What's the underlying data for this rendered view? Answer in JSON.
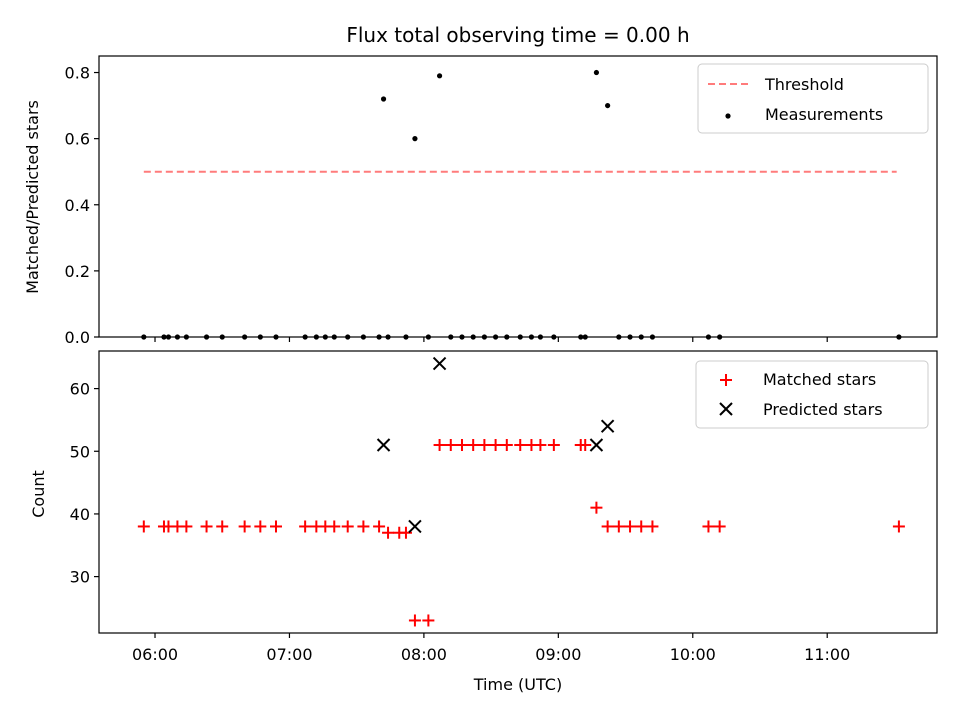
{
  "chart_data": [
    {
      "type": "scatter",
      "title": "Flux total observing time = 0.00 h",
      "xlabel": "",
      "ylabel": "Matched/Predicted stars",
      "ylim": [
        0,
        0.85
      ],
      "yticks": [
        "0.0",
        "0.2",
        "0.4",
        "0.6",
        "0.8"
      ],
      "ytick_values": [
        0,
        0.2,
        0.4,
        0.6,
        0.8
      ],
      "legend_position": "top-right",
      "threshold": {
        "name": "Threshold",
        "value": 0.5,
        "x_start": "05:55",
        "x_end": "11:31",
        "color": "#ff7b7b",
        "style": "dashed"
      },
      "series": [
        {
          "name": "Measurements",
          "color": "#000000",
          "marker": "dot",
          "points": [
            [
              "05:55",
              0
            ],
            [
              "06:04",
              0
            ],
            [
              "06:06",
              0
            ],
            [
              "06:10",
              0
            ],
            [
              "06:14",
              0
            ],
            [
              "06:23",
              0
            ],
            [
              "06:30",
              0
            ],
            [
              "06:40",
              0
            ],
            [
              "06:47",
              0
            ],
            [
              "06:54",
              0
            ],
            [
              "07:07",
              0
            ],
            [
              "07:12",
              0
            ],
            [
              "07:16",
              0
            ],
            [
              "07:20",
              0
            ],
            [
              "07:26",
              0
            ],
            [
              "07:33",
              0
            ],
            [
              "07:40",
              0
            ],
            [
              "07:44",
              0
            ],
            [
              "07:52",
              0
            ],
            [
              "07:42",
              0.72
            ],
            [
              "07:56",
              0.6
            ],
            [
              "08:07",
              0.79
            ],
            [
              "08:02",
              0
            ],
            [
              "08:12",
              0
            ],
            [
              "08:17",
              0
            ],
            [
              "08:22",
              0
            ],
            [
              "08:27",
              0
            ],
            [
              "08:32",
              0
            ],
            [
              "08:37",
              0
            ],
            [
              "08:43",
              0
            ],
            [
              "08:48",
              0
            ],
            [
              "08:52",
              0
            ],
            [
              "08:58",
              0
            ],
            [
              "09:10",
              0
            ],
            [
              "09:12",
              0
            ],
            [
              "09:17",
              0.8
            ],
            [
              "09:22",
              0.7
            ],
            [
              "09:27",
              0
            ],
            [
              "09:32",
              0
            ],
            [
              "09:37",
              0
            ],
            [
              "09:42",
              0
            ],
            [
              "10:07",
              0
            ],
            [
              "10:12",
              0
            ],
            [
              "11:32",
              0
            ]
          ]
        }
      ]
    },
    {
      "type": "scatter",
      "title": "",
      "xlabel": "Time (UTC)",
      "ylabel": "Count",
      "ylim": [
        21,
        66
      ],
      "yticks": [
        "30",
        "40",
        "50",
        "60"
      ],
      "ytick_values": [
        30,
        40,
        50,
        60
      ],
      "xlim": [
        "05:35",
        "11:49"
      ],
      "xticks": [
        "06:00",
        "07:00",
        "08:00",
        "09:00",
        "10:00",
        "11:00"
      ],
      "legend_position": "top-right",
      "series": [
        {
          "name": "Matched stars",
          "color": "#ff0000",
          "marker": "plus",
          "points": [
            [
              "05:55",
              38
            ],
            [
              "06:04",
              38
            ],
            [
              "06:06",
              38
            ],
            [
              "06:10",
              38
            ],
            [
              "06:14",
              38
            ],
            [
              "06:23",
              38
            ],
            [
              "06:30",
              38
            ],
            [
              "06:40",
              38
            ],
            [
              "06:47",
              38
            ],
            [
              "06:54",
              38
            ],
            [
              "07:07",
              38
            ],
            [
              "07:12",
              38
            ],
            [
              "07:16",
              38
            ],
            [
              "07:20",
              38
            ],
            [
              "07:26",
              38
            ],
            [
              "07:33",
              38
            ],
            [
              "07:40",
              38
            ],
            [
              "07:44",
              37
            ],
            [
              "07:49",
              37
            ],
            [
              "07:52",
              37
            ],
            [
              "07:56",
              23
            ],
            [
              "08:02",
              23
            ],
            [
              "08:07",
              51
            ],
            [
              "08:12",
              51
            ],
            [
              "08:17",
              51
            ],
            [
              "08:22",
              51
            ],
            [
              "08:27",
              51
            ],
            [
              "08:32",
              51
            ],
            [
              "08:37",
              51
            ],
            [
              "08:43",
              51
            ],
            [
              "08:48",
              51
            ],
            [
              "08:52",
              51
            ],
            [
              "08:58",
              51
            ],
            [
              "09:10",
              51
            ],
            [
              "09:12",
              51
            ],
            [
              "09:17",
              41
            ],
            [
              "09:22",
              38
            ],
            [
              "09:27",
              38
            ],
            [
              "09:32",
              38
            ],
            [
              "09:37",
              38
            ],
            [
              "09:42",
              38
            ],
            [
              "10:07",
              38
            ],
            [
              "10:12",
              38
            ],
            [
              "11:32",
              38
            ]
          ]
        },
        {
          "name": "Predicted stars",
          "color": "#000000",
          "marker": "x",
          "points": [
            [
              "07:42",
              51
            ],
            [
              "07:56",
              38
            ],
            [
              "08:07",
              64
            ],
            [
              "09:17",
              51
            ],
            [
              "09:22",
              54
            ]
          ]
        }
      ]
    }
  ]
}
